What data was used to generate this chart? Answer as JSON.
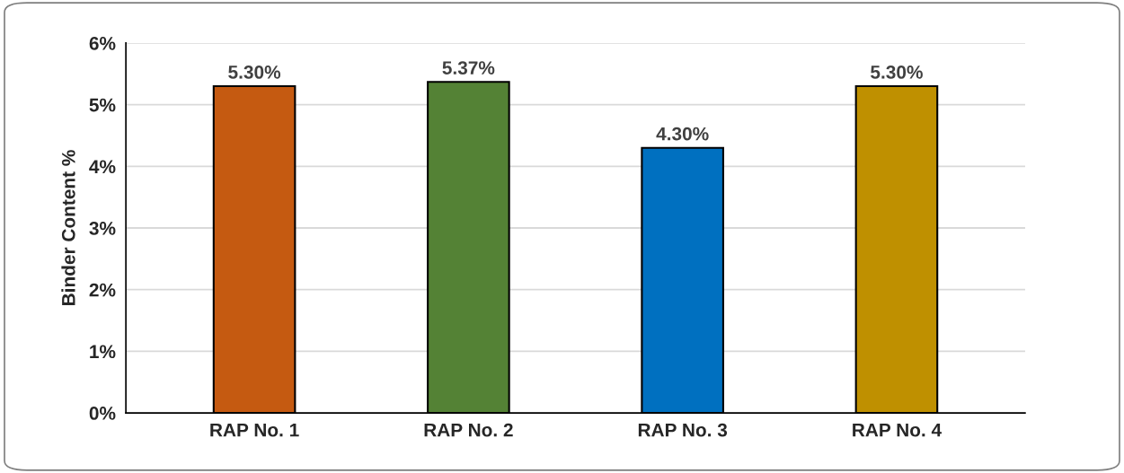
{
  "chart_data": {
    "type": "bar",
    "ylabel": "Binder Content %",
    "categories": [
      "RAP No. 1",
      "RAP No. 2",
      "RAP No. 3",
      "RAP No. 4"
    ],
    "values": [
      5.3,
      5.37,
      4.3,
      5.3
    ],
    "colors": [
      "#c55a11",
      "#548235",
      "#0070c0",
      "#bf9000"
    ],
    "value_labels": [
      "5.30%",
      "5.37%",
      "4.30%",
      "5.30%"
    ],
    "ylim": [
      0,
      6
    ],
    "yticks": [
      {
        "value": 0,
        "label": "0%"
      },
      {
        "value": 1,
        "label": "1%"
      },
      {
        "value": 2,
        "label": "2%"
      },
      {
        "value": 3,
        "label": "3%"
      },
      {
        "value": 4,
        "label": "4%"
      },
      {
        "value": 5,
        "label": "5%"
      },
      {
        "value": 6,
        "label": "6%"
      }
    ],
    "grid": "y"
  }
}
